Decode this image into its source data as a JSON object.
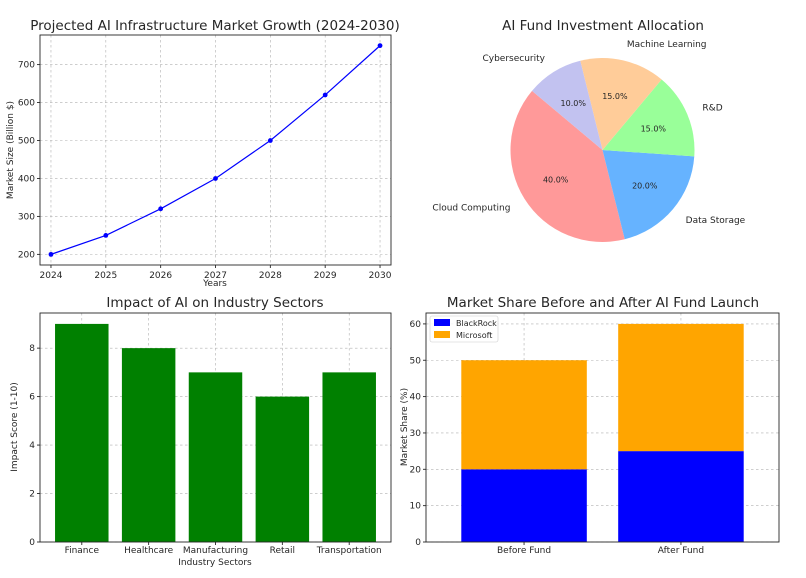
{
  "chart_data": [
    {
      "type": "line",
      "title": "Projected AI Infrastructure Market Growth (2024-2030)",
      "xlabel": "Years",
      "ylabel": "Market Size (Billion $)",
      "x": [
        2024,
        2025,
        2026,
        2027,
        2028,
        2029,
        2030
      ],
      "values": [
        200,
        250,
        320,
        400,
        500,
        620,
        750
      ],
      "yticks": [
        200,
        300,
        400,
        500,
        600,
        700
      ],
      "xlim": [
        2023.8,
        2030.2
      ],
      "ylim": [
        172,
        778
      ],
      "grid": true,
      "color": "#0000ff"
    },
    {
      "type": "pie",
      "title": "AI Fund Investment Allocation",
      "labels": [
        "Cloud Computing",
        "Data Storage",
        "R&D",
        "Machine Learning",
        "Cybersecurity"
      ],
      "values": [
        40,
        20,
        15,
        15,
        10
      ],
      "pct_labels": [
        "40.0%",
        "20.0%",
        "15.0%",
        "15.0%",
        "10.0%"
      ],
      "colors": [
        "#ff9999",
        "#66b3ff",
        "#99ff99",
        "#ffcc99",
        "#c2c2f0"
      ],
      "startangle": 140
    },
    {
      "type": "bar",
      "title": "Impact of AI on Industry Sectors",
      "xlabel": "Industry Sectors",
      "ylabel": "Impact Score (1-10)",
      "categories": [
        "Finance",
        "Healthcare",
        "Manufacturing",
        "Retail",
        "Transportation"
      ],
      "values": [
        9,
        8,
        7,
        6,
        7
      ],
      "yticks": [
        0,
        2,
        4,
        6,
        8
      ],
      "ylim": [
        0,
        9.45
      ],
      "grid": true,
      "color": "#008000"
    },
    {
      "type": "bar",
      "stacked": true,
      "title": "Market Share Before and After AI Fund Launch",
      "xlabel": "",
      "ylabel": "Market Share (%)",
      "categories": [
        "Before Fund",
        "After Fund"
      ],
      "series": [
        {
          "name": "BlackRock",
          "values": [
            20,
            25
          ],
          "color": "#0000ff"
        },
        {
          "name": "Microsoft",
          "values": [
            30,
            35
          ],
          "color": "#ffa500"
        }
      ],
      "yticks": [
        0,
        10,
        20,
        30,
        40,
        50,
        60
      ],
      "ylim": [
        0,
        63
      ],
      "grid": true,
      "legend": "top-left"
    }
  ]
}
